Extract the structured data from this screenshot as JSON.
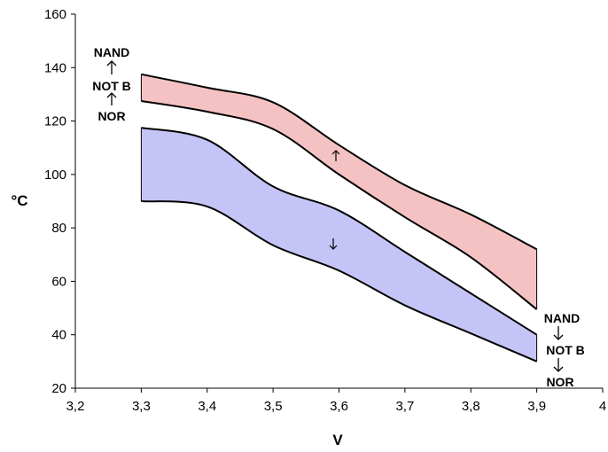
{
  "chart_data": {
    "type": "area",
    "title": "",
    "xlabel": "V",
    "ylabel": "°C",
    "xlim": [
      3.2,
      4.0
    ],
    "ylim": [
      20,
      160
    ],
    "x_ticks": [
      "3,2",
      "3,3",
      "3,4",
      "3,5",
      "3,6",
      "3,7",
      "3,8",
      "3,9",
      "4"
    ],
    "y_ticks": [
      "20",
      "40",
      "60",
      "80",
      "100",
      "120",
      "140",
      "160"
    ],
    "grid": false,
    "colors": {
      "upper_band": "#f4c2c2",
      "lower_band": "#c4c4f6",
      "outline": "#000000"
    },
    "series": [
      {
        "band": "upper",
        "x": [
          3.3,
          3.4,
          3.5,
          3.6,
          3.7,
          3.8,
          3.9
        ],
        "upper": [
          137.5,
          132.5,
          127,
          111,
          96,
          85,
          72
        ],
        "lower": [
          127.5,
          123.5,
          117,
          100,
          84,
          69,
          49.5
        ],
        "arrow": "up"
      },
      {
        "band": "lower",
        "x": [
          3.3,
          3.4,
          3.5,
          3.6,
          3.7,
          3.8,
          3.9
        ],
        "upper": [
          117.5,
          113,
          95.5,
          86.5,
          71,
          55.5,
          40
        ],
        "lower": [
          90,
          88,
          73.5,
          64,
          51,
          40.5,
          30
        ],
        "arrow": "down"
      }
    ],
    "annotations": {
      "left": {
        "top": "NAND",
        "middle": "NOT B",
        "bottom": "NOR",
        "arrow": "up"
      },
      "right": {
        "top": "NAND",
        "middle": "NOT B",
        "bottom": "NOR",
        "arrow": "down"
      }
    }
  }
}
